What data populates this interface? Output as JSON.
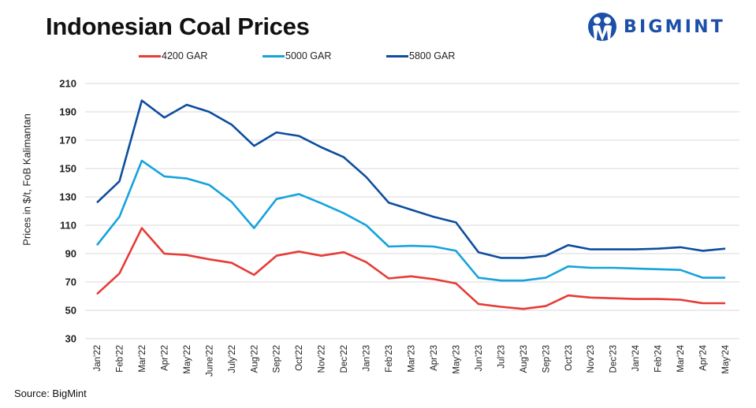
{
  "header": {
    "title": "Indonesian Coal Prices",
    "brand": "BIGMINT"
  },
  "footer": {
    "source": "Source: BigMint"
  },
  "chart_data": {
    "type": "line",
    "title": "Indonesian Coal Prices",
    "xlabel": "",
    "ylabel": "Prices in $/t, FoB Kalimantan",
    "ylim": [
      30,
      210
    ],
    "yticks": [
      30,
      50,
      70,
      90,
      110,
      130,
      150,
      170,
      190,
      210
    ],
    "grid": true,
    "legend_position": "top",
    "categories": [
      "Jan'22",
      "Feb'22",
      "Mar'22",
      "Apr'22",
      "May'22",
      "June'22",
      "July'22",
      "Aug'22",
      "Sep'22",
      "Oct'22",
      "Nov'22",
      "Dec'22",
      "Jan'23",
      "Feb'23",
      "Mar'23",
      "Apr'23",
      "May'23",
      "Jun'23",
      "Jul'23",
      "Aug'23",
      "Sep'23",
      "Oct'23",
      "Nov'23",
      "Dec'23",
      "Jan'24",
      "Feb'24",
      "Mar'24",
      "Apr'24",
      "May'24"
    ],
    "series": [
      {
        "name": "4200 GAR",
        "color": "#e63b37",
        "values": [
          61.5,
          76,
          108,
          90,
          89,
          86,
          83.5,
          75,
          88.5,
          91.5,
          88.5,
          91,
          84,
          72.5,
          74,
          72,
          69,
          54.5,
          52.5,
          51,
          53,
          60.5,
          59,
          58.5,
          58,
          58,
          57.5,
          55,
          55
        ]
      },
      {
        "name": "5000 GAR",
        "color": "#14a3dc",
        "values": [
          96,
          116,
          155.5,
          144.5,
          143,
          138.5,
          126.5,
          108,
          128.5,
          132,
          125.5,
          118.5,
          110,
          95,
          95.5,
          95,
          92,
          73,
          71,
          71,
          73,
          81,
          80,
          80,
          79.5,
          79,
          78.5,
          73,
          73
        ]
      },
      {
        "name": "5800 GAR",
        "color": "#0d4d9e",
        "values": [
          126,
          141,
          198,
          186,
          195,
          190,
          181,
          166,
          175.5,
          173,
          165,
          158,
          144,
          126,
          121,
          116,
          112,
          91,
          87,
          87,
          88.5,
          96,
          93,
          93,
          93,
          93.5,
          94.5,
          92,
          93.5
        ]
      }
    ]
  },
  "colors": {
    "brand": "#1c4fa8",
    "grid": "#d9d9d9"
  }
}
